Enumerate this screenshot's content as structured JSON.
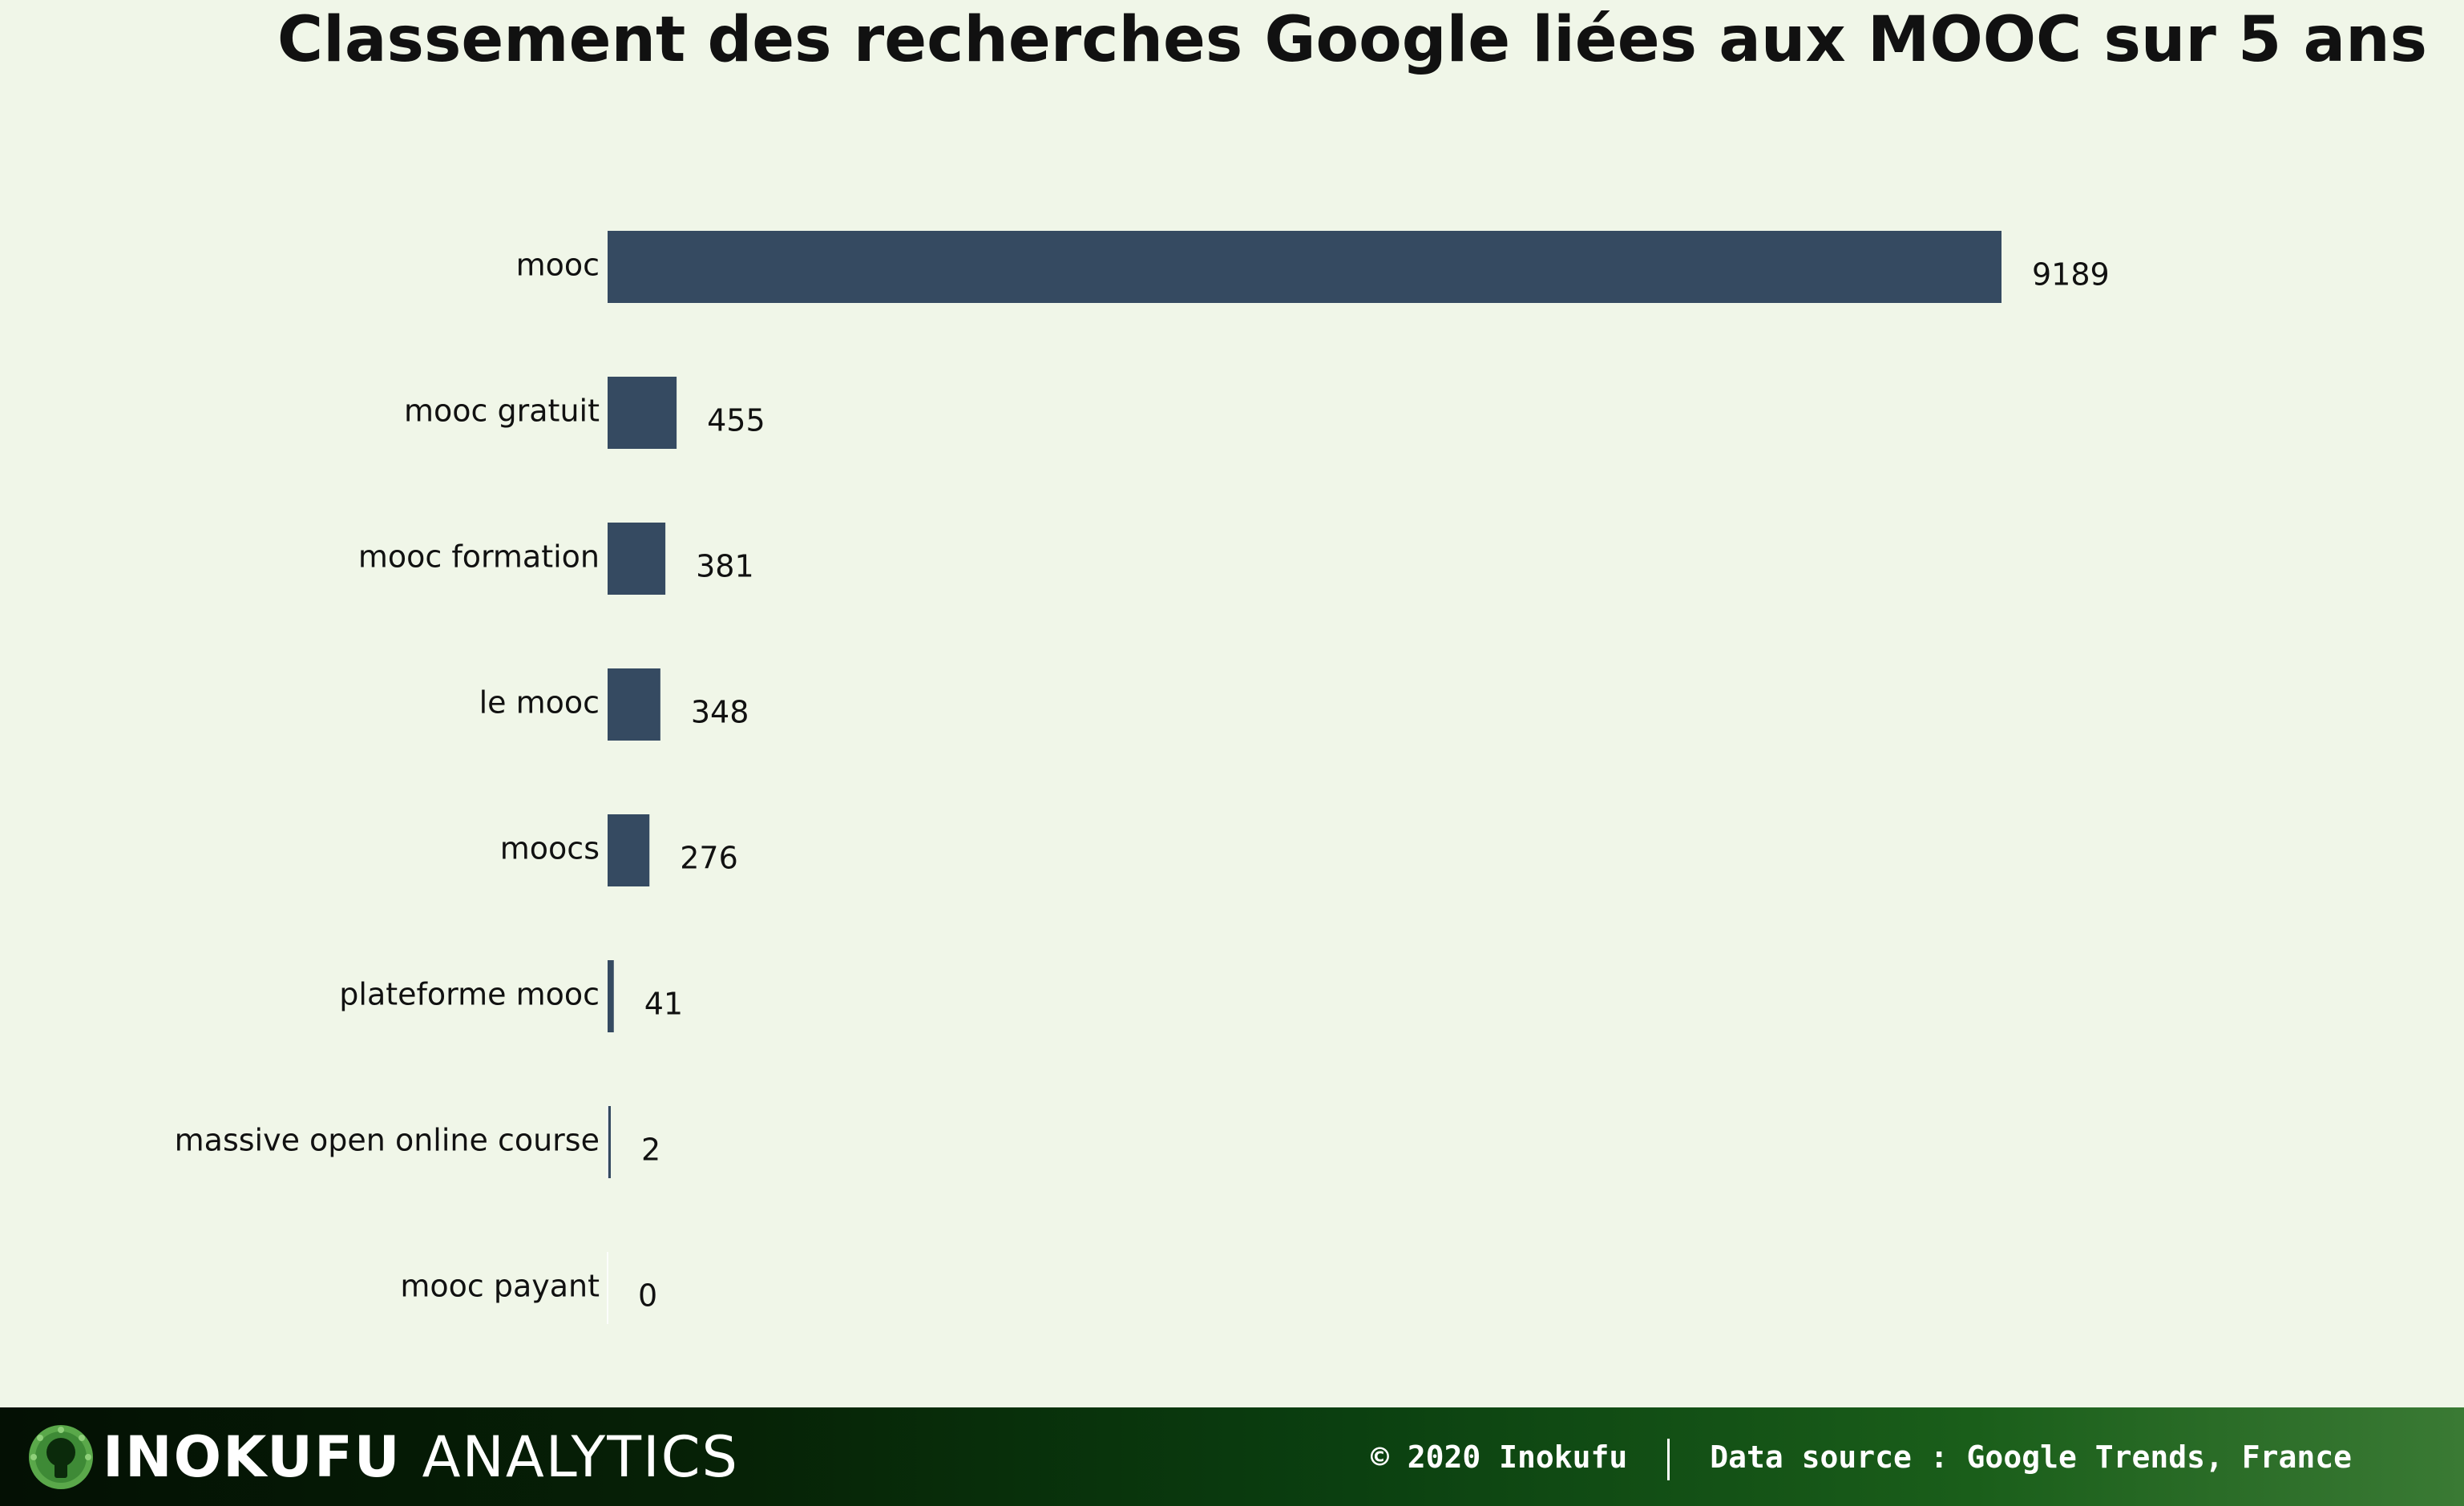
{
  "chart_data": {
    "type": "bar",
    "orientation": "horizontal",
    "title": "Classement des recherches Google liées aux MOOC sur 5 ans",
    "xlabel": "",
    "ylabel": "",
    "categories": [
      "mooc",
      "mooc gratuit",
      "mooc formation",
      "le mooc",
      "moocs",
      "plateforme mooc",
      "massive open online course",
      "mooc payant"
    ],
    "values": [
      9189,
      455,
      381,
      348,
      276,
      41,
      2,
      0
    ],
    "xlim": [
      0,
      9189
    ],
    "grid": false,
    "legend": "none",
    "bar_color": "#354a61",
    "data_labels": true
  },
  "footer": {
    "brand_bold": "INOKUFU",
    "brand_light": "ANALYTICS",
    "copyright": "© 2020 Inokufu",
    "source": "Data source : Google Trends, France"
  },
  "colors": {
    "background": "#f0f6e8",
    "bar": "#354a61",
    "footer_dark": "#041004",
    "footer_light": "#3a7a34",
    "logo_green": "#5aa84a"
  },
  "icons": {
    "logo": "lightbulb-logo-icon"
  }
}
